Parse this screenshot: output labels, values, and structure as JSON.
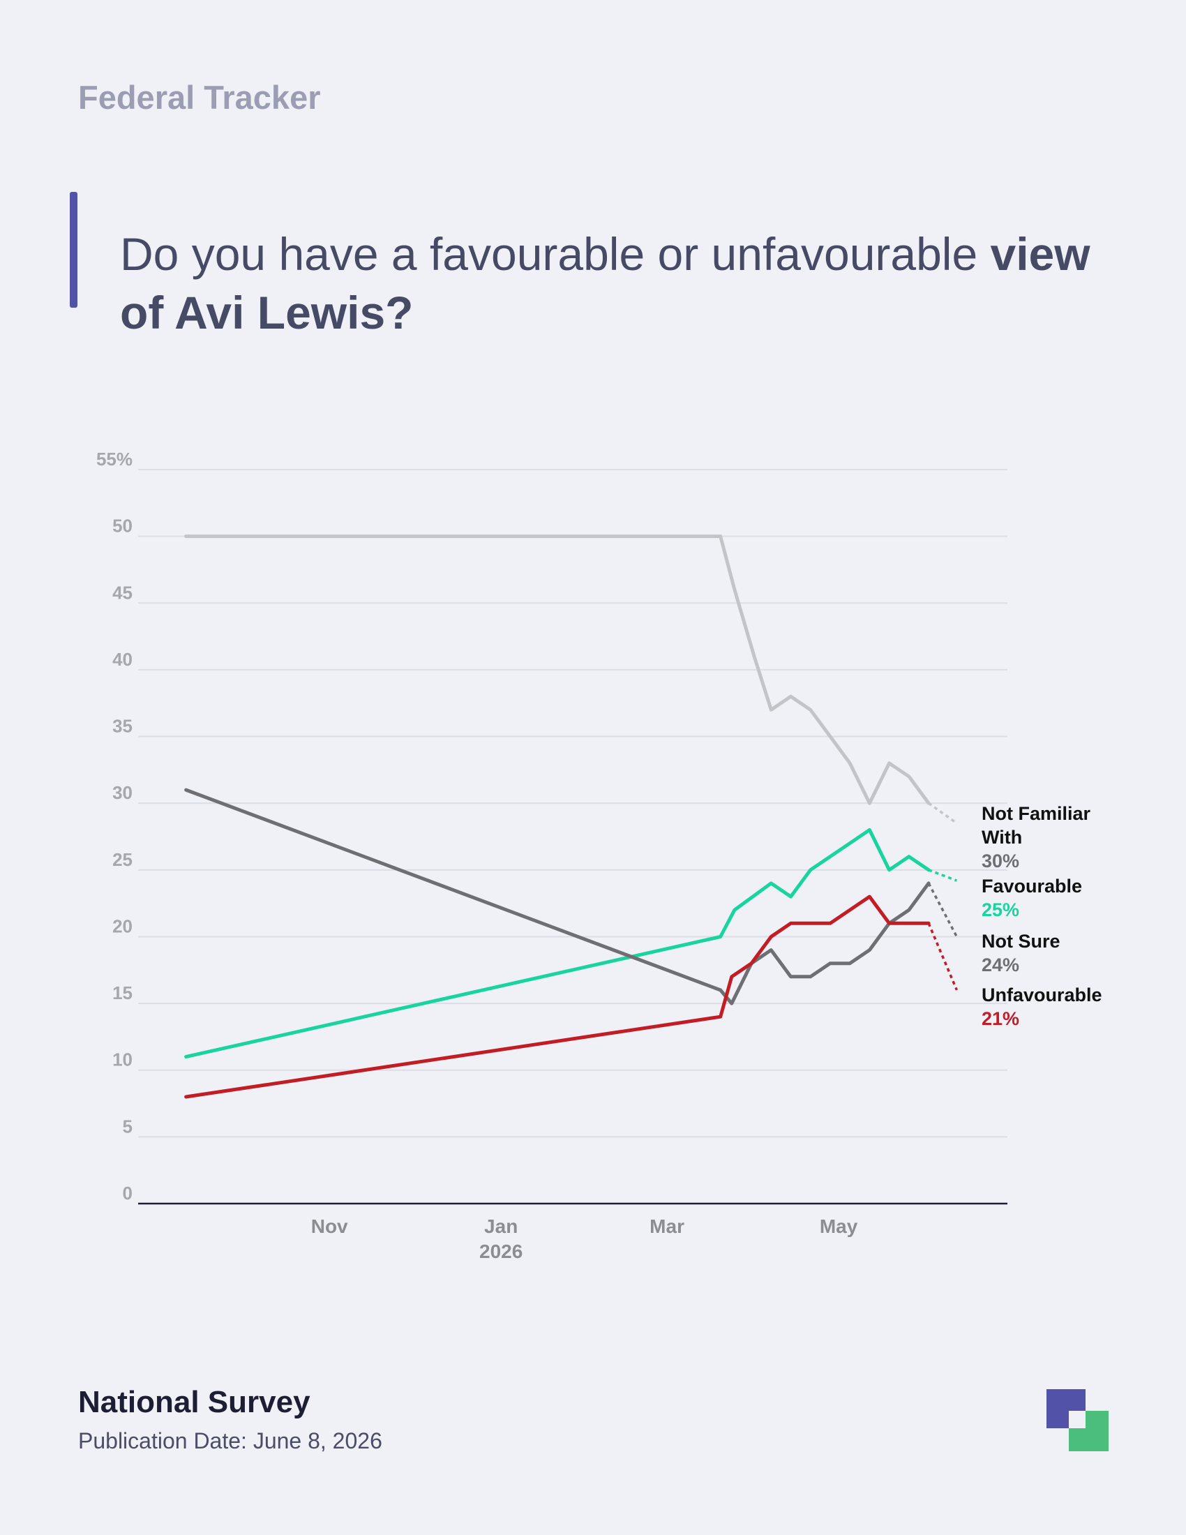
{
  "header": {
    "eyebrow": "Federal Tracker",
    "title_regular": "Do you have a favourable or unfavourable ",
    "title_bold": "view of Avi Lewis?"
  },
  "footer": {
    "source": "National Survey",
    "publication_date": "Publication Date: June 8, 2026"
  },
  "logo": {
    "icon": "overlapping-squares-logo",
    "colors": [
      "#5152a8",
      "#4cbe7c"
    ]
  },
  "chart_data": {
    "type": "line",
    "title": "Do you have a favourable or unfavourable view of Avi Lewis?",
    "ylim": [
      0,
      55
    ],
    "y_ticks": [
      0,
      5,
      10,
      15,
      20,
      25,
      30,
      35,
      40,
      45,
      50,
      55
    ],
    "y_tick_labels": [
      "0",
      "5",
      "10",
      "15",
      "20",
      "25",
      "30",
      "35",
      "40",
      "45",
      "50",
      "55%"
    ],
    "xlim": [
      "2025-08-25",
      "2026-06-30"
    ],
    "x_ticks": [
      {
        "date": "2025-11-01",
        "label": "Nov",
        "sublabel": ""
      },
      {
        "date": "2026-01-01",
        "label": "Jan",
        "sublabel": "2026"
      },
      {
        "date": "2026-03-01",
        "label": "Mar",
        "sublabel": ""
      },
      {
        "date": "2026-05-01",
        "label": "May",
        "sublabel": ""
      }
    ],
    "grid": true,
    "legend": "end-of-line labels",
    "series": [
      {
        "name": "Not Familiar With",
        "label_lines": [
          "Not Familiar",
          "With"
        ],
        "value_label": "30%",
        "color": "#c4c4c8",
        "value_color": "#6f6f73",
        "points": [
          [
            "2025-09-11",
            50
          ],
          [
            "2026-03-20",
            50
          ],
          [
            "2026-03-25",
            46
          ],
          [
            "2026-04-01",
            41
          ],
          [
            "2026-04-07",
            37
          ],
          [
            "2026-04-14",
            38
          ],
          [
            "2026-04-21",
            37
          ],
          [
            "2026-04-28",
            35
          ],
          [
            "2026-05-05",
            33
          ],
          [
            "2026-05-12",
            30
          ],
          [
            "2026-05-19",
            33
          ],
          [
            "2026-05-26",
            32
          ],
          [
            "2026-06-02",
            30
          ]
        ],
        "projection": [
          "2026-06-12",
          28.5
        ]
      },
      {
        "name": "Favourable",
        "label_lines": [
          "Favourable"
        ],
        "value_label": "25%",
        "color": "#19d49e",
        "value_color": "#19d49e",
        "points": [
          [
            "2025-09-11",
            11
          ],
          [
            "2026-03-20",
            20
          ],
          [
            "2026-03-25",
            22
          ],
          [
            "2026-04-07",
            24
          ],
          [
            "2026-04-14",
            23
          ],
          [
            "2026-04-21",
            25
          ],
          [
            "2026-05-12",
            28
          ],
          [
            "2026-05-19",
            25
          ],
          [
            "2026-05-26",
            26
          ],
          [
            "2026-06-02",
            25
          ]
        ],
        "projection": [
          "2026-06-12",
          24.2
        ]
      },
      {
        "name": "Not Sure",
        "label_lines": [
          "Not Sure"
        ],
        "value_label": "24%",
        "color": "#6f6f73",
        "value_color": "#6f6f73",
        "points": [
          [
            "2025-09-11",
            31
          ],
          [
            "2026-03-20",
            16
          ],
          [
            "2026-03-24",
            15
          ],
          [
            "2026-03-31",
            18
          ],
          [
            "2026-04-07",
            19
          ],
          [
            "2026-04-14",
            17
          ],
          [
            "2026-04-21",
            17
          ],
          [
            "2026-04-28",
            18
          ],
          [
            "2026-05-05",
            18
          ],
          [
            "2026-05-12",
            19
          ],
          [
            "2026-05-19",
            21
          ],
          [
            "2026-05-26",
            22
          ],
          [
            "2026-06-02",
            24
          ]
        ],
        "projection": [
          "2026-06-12",
          20
        ]
      },
      {
        "name": "Unfavourable",
        "label_lines": [
          "Unfavourable"
        ],
        "value_label": "21%",
        "color": "#c21d24",
        "value_color": "#c21d24",
        "points": [
          [
            "2025-09-11",
            8
          ],
          [
            "2026-03-20",
            14
          ],
          [
            "2026-03-24",
            17
          ],
          [
            "2026-03-31",
            18
          ],
          [
            "2026-04-07",
            20
          ],
          [
            "2026-04-14",
            21
          ],
          [
            "2026-04-28",
            21
          ],
          [
            "2026-05-12",
            23
          ],
          [
            "2026-05-19",
            21
          ],
          [
            "2026-06-02",
            21
          ]
        ],
        "projection": [
          "2026-06-12",
          16
        ]
      }
    ]
  }
}
